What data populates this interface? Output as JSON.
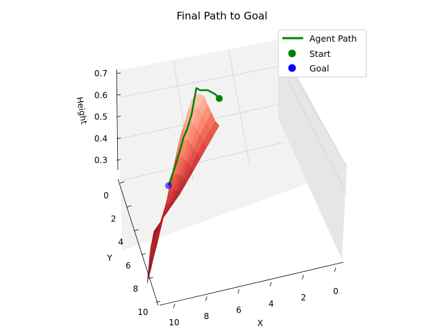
{
  "chart_data": {
    "type": "surface3d",
    "title": "Final Path to Goal",
    "xlabel": "X",
    "ylabel": "Y",
    "zlabel": "Height",
    "xlim": [
      0,
      10
    ],
    "ylim": [
      0,
      10
    ],
    "zlim": [
      0.25,
      0.7
    ],
    "x_ticks": [
      "0",
      "2",
      "4",
      "6",
      "8",
      "10"
    ],
    "y_ticks": [
      "0",
      "2",
      "4",
      "6",
      "8",
      "10"
    ],
    "z_ticks": [
      "0.3",
      "0.4",
      "0.5",
      "0.6",
      "0.7"
    ],
    "surface_colormap": "Reds",
    "surface_x": [
      0,
      1,
      2,
      3,
      4,
      5,
      6,
      7,
      8,
      9,
      10
    ],
    "surface_y": [
      0,
      1,
      2,
      3,
      4,
      5,
      6,
      7,
      8,
      9,
      10
    ],
    "heights": [
      [
        0.42,
        0.45,
        0.5,
        0.55,
        0.6,
        0.62,
        0.63,
        0.62,
        0.58,
        0.52,
        0.48
      ],
      [
        0.4,
        0.44,
        0.49,
        0.54,
        0.58,
        0.6,
        0.61,
        0.6,
        0.56,
        0.5,
        0.46
      ],
      [
        0.38,
        0.42,
        0.47,
        0.51,
        0.55,
        0.57,
        0.58,
        0.56,
        0.53,
        0.48,
        0.44
      ],
      [
        0.36,
        0.4,
        0.44,
        0.48,
        0.51,
        0.53,
        0.54,
        0.52,
        0.49,
        0.45,
        0.41
      ],
      [
        0.34,
        0.37,
        0.41,
        0.44,
        0.47,
        0.49,
        0.49,
        0.48,
        0.45,
        0.42,
        0.38
      ],
      [
        0.32,
        0.35,
        0.38,
        0.41,
        0.43,
        0.45,
        0.45,
        0.44,
        0.41,
        0.38,
        0.35
      ],
      [
        0.3,
        0.33,
        0.35,
        0.38,
        0.4,
        0.41,
        0.41,
        0.4,
        0.38,
        0.35,
        0.33
      ],
      [
        0.29,
        0.31,
        0.33,
        0.35,
        0.37,
        0.38,
        0.38,
        0.37,
        0.35,
        0.33,
        0.31
      ],
      [
        0.28,
        0.3,
        0.31,
        0.33,
        0.34,
        0.35,
        0.35,
        0.34,
        0.33,
        0.31,
        0.3
      ],
      [
        0.27,
        0.28,
        0.3,
        0.31,
        0.32,
        0.33,
        0.33,
        0.32,
        0.31,
        0.3,
        0.28
      ],
      [
        0.26,
        0.27,
        0.28,
        0.29,
        0.3,
        0.31,
        0.31,
        0.3,
        0.29,
        0.28,
        0.27
      ]
    ],
    "series": [
      {
        "name": "Agent Path",
        "kind": "line",
        "color": "#008000",
        "points": [
          {
            "x": 0,
            "y": 0,
            "z": 0.55
          },
          {
            "x": 1,
            "y": 0,
            "z": 0.58
          },
          {
            "x": 2,
            "y": 0,
            "z": 0.6
          },
          {
            "x": 3,
            "y": 0,
            "z": 0.62
          },
          {
            "x": 4,
            "y": 0,
            "z": 0.63
          },
          {
            "x": 5,
            "y": 0,
            "z": 0.64
          },
          {
            "x": 6,
            "y": 0,
            "z": 0.66
          },
          {
            "x": 6,
            "y": 1,
            "z": 0.58
          },
          {
            "x": 6,
            "y": 2,
            "z": 0.55
          },
          {
            "x": 7,
            "y": 2,
            "z": 0.53
          },
          {
            "x": 7,
            "y": 3,
            "z": 0.5
          },
          {
            "x": 8,
            "y": 3,
            "z": 0.47
          },
          {
            "x": 8,
            "y": 4,
            "z": 0.46
          },
          {
            "x": 8,
            "y": 5,
            "z": 0.45
          }
        ]
      },
      {
        "name": "Start",
        "kind": "point",
        "color": "#008000",
        "x": 0,
        "y": 0,
        "z": 0.55
      },
      {
        "name": "Goal",
        "kind": "point",
        "color": "#0000ff",
        "x": 8,
        "y": 5,
        "z": 0.45
      }
    ],
    "legend_position": "top-right",
    "grid": true
  }
}
